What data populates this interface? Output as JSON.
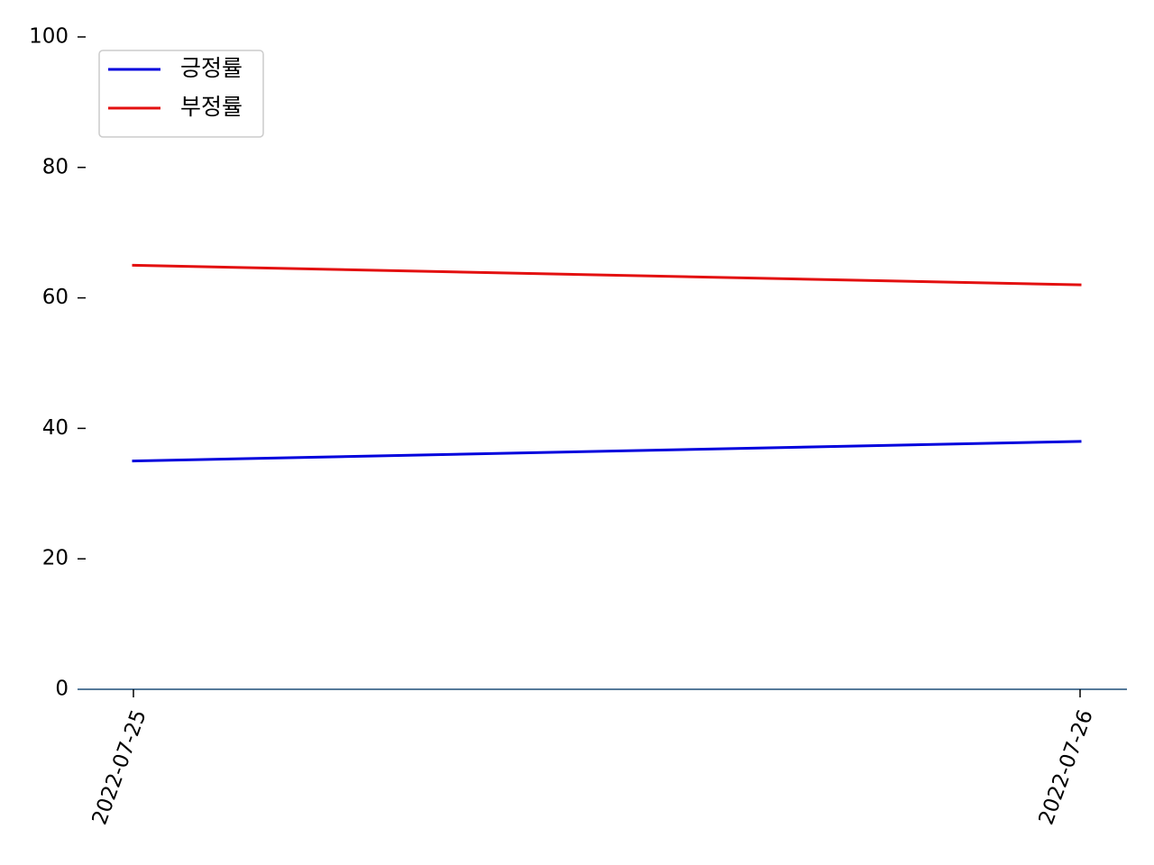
{
  "chart_data": {
    "type": "line",
    "title": "",
    "xlabel": "",
    "ylabel": "",
    "x": [
      "2022-07-25",
      "2022-07-26"
    ],
    "ylim": [
      0,
      100
    ],
    "yticks": [
      0,
      20,
      40,
      60,
      80,
      100
    ],
    "grid": false,
    "legend_position": "top-left",
    "series": [
      {
        "name": "긍정률",
        "color": "#0000dd",
        "values": [
          35,
          38
        ]
      },
      {
        "name": "부정률",
        "color": "#e31010",
        "values": [
          65,
          62
        ]
      }
    ],
    "axis_color": "#1f4e79"
  }
}
